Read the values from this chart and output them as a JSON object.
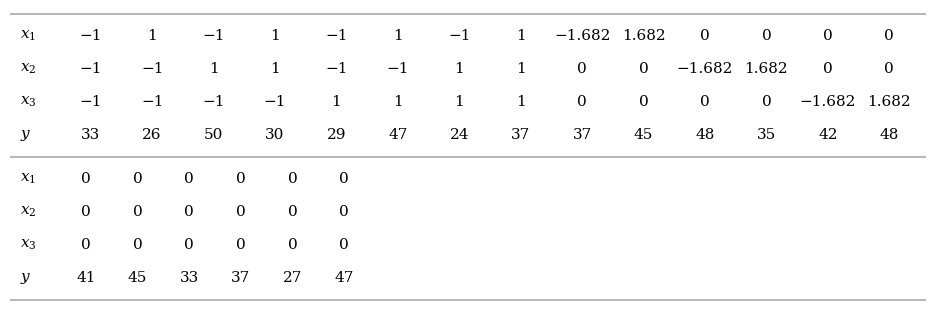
{
  "row_labels_1": [
    "$x_1$",
    "$x_2$",
    "$x_3$",
    "$y$"
  ],
  "row1_vals": [
    "−1",
    "1",
    "−1",
    "1",
    "−1",
    "1",
    "−1",
    "1",
    "−1.682",
    "1.682",
    "0",
    "0",
    "0",
    "0"
  ],
  "row2_vals": [
    "−1",
    "−1",
    "1",
    "1",
    "−1",
    "−1",
    "1",
    "1",
    "0",
    "0",
    "−1.682",
    "1.682",
    "0",
    "0"
  ],
  "row3_vals": [
    "−1",
    "−1",
    "−1",
    "−1",
    "1",
    "1",
    "1",
    "1",
    "0",
    "0",
    "0",
    "0",
    "−1.682",
    "1.682"
  ],
  "row4_vals": [
    "33",
    "26",
    "50",
    "30",
    "29",
    "47",
    "24",
    "37",
    "37",
    "45",
    "48",
    "35",
    "42",
    "48"
  ],
  "row_labels_2": [
    "$x_1$",
    "$x_2$",
    "$x_3$",
    "$y$"
  ],
  "row5_vals": [
    "0",
    "0",
    "0",
    "0",
    "0",
    "0"
  ],
  "row6_vals": [
    "0",
    "0",
    "0",
    "0",
    "0",
    "0"
  ],
  "row7_vals": [
    "0",
    "0",
    "0",
    "0",
    "0",
    "0"
  ],
  "row8_vals": [
    "41",
    "45",
    "33",
    "37",
    "27",
    "47"
  ],
  "bg_color": "#ffffff",
  "text_color": "#000000",
  "line_color": "#aaaaaa",
  "fontsize": 11
}
